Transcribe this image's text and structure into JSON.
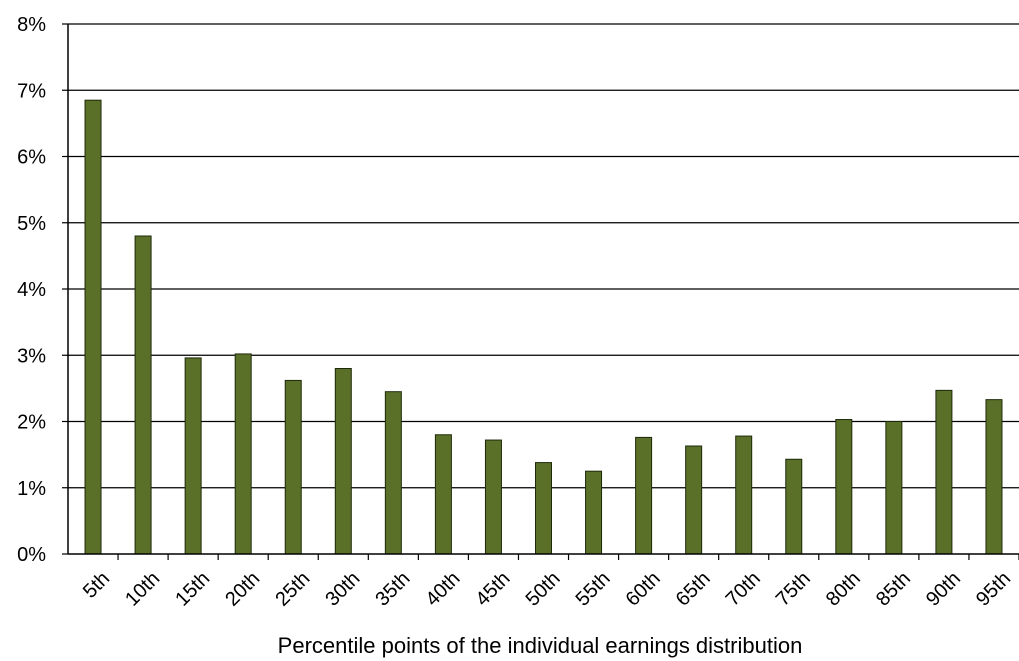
{
  "chart_data": {
    "type": "bar",
    "title": "",
    "xlabel": "Percentile points of the individual earnings distribution",
    "ylabel": "",
    "categories": [
      "5th",
      "10th",
      "15th",
      "20th",
      "25th",
      "30th",
      "35th",
      "40th",
      "45th",
      "50th",
      "55th",
      "60th",
      "65th",
      "70th",
      "75th",
      "80th",
      "85th",
      "90th",
      "95th"
    ],
    "values": [
      6.85,
      4.8,
      2.96,
      3.02,
      2.62,
      2.8,
      2.45,
      1.8,
      1.72,
      1.38,
      1.25,
      1.76,
      1.63,
      1.78,
      1.43,
      2.03,
      2.0,
      2.47,
      2.33
    ],
    "value_unit": "%",
    "ylim": [
      0,
      8
    ],
    "yticks": [
      "0%",
      "1%",
      "2%",
      "3%",
      "4%",
      "5%",
      "6%",
      "7%",
      "8%"
    ],
    "grid": true,
    "legend": "none",
    "colors": {
      "bar_fill": "#5a7028",
      "bar_stroke": "#1e2a0a",
      "grid": "#000000",
      "axis": "#000000"
    }
  }
}
